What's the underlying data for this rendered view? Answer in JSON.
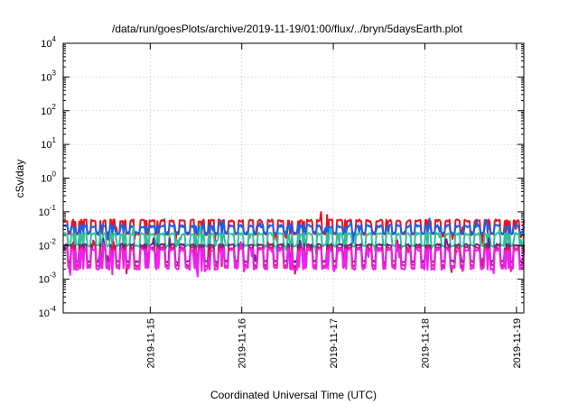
{
  "chart_data": {
    "type": "line",
    "title": "/data/run/goesPlots/archive/2019-11-19/01:00/flux/../bryn/5daysEarth.plot",
    "xlabel": "Coordinated Universal Time (UTC)",
    "ylabel": "cSv/day",
    "yscale": "log",
    "ylim": [
      0.0001,
      10000
    ],
    "xlim_days": [
      14.05,
      19.08
    ],
    "y_ticks": [
      {
        "value": 0.0001,
        "base": "10",
        "exp": "-4"
      },
      {
        "value": 0.001,
        "base": "10",
        "exp": "-3"
      },
      {
        "value": 0.01,
        "base": "10",
        "exp": "-2"
      },
      {
        "value": 0.1,
        "base": "10",
        "exp": "-1"
      },
      {
        "value": 1,
        "base": "10",
        "exp": "0"
      },
      {
        "value": 10,
        "base": "10",
        "exp": "1"
      },
      {
        "value": 100,
        "base": "10",
        "exp": "2"
      },
      {
        "value": 1000,
        "base": "10",
        "exp": "3"
      },
      {
        "value": 10000,
        "base": "10",
        "exp": "4"
      }
    ],
    "x_ticks": [
      {
        "day": 15,
        "label": "2019-11-15"
      },
      {
        "day": 16,
        "label": "2019-11-16"
      },
      {
        "day": 17,
        "label": "2019-11-17"
      },
      {
        "day": 18,
        "label": "2019-11-18"
      },
      {
        "day": 19,
        "label": "2019-11-19"
      }
    ],
    "grid": true,
    "series": [
      {
        "color": "#e8141e",
        "base": 0.055,
        "dip": 0.6,
        "noise": 0.08
      },
      {
        "color": "#1f5fe0",
        "base": 0.038,
        "dip": 0.38,
        "noise": 0.1
      },
      {
        "color": "#2fc09a",
        "base": 0.022,
        "dip": 0.55,
        "noise": 0.08
      },
      {
        "color": "#6a2a84",
        "base": 0.0105,
        "dip": 0.68,
        "noise": 0.07
      },
      {
        "color": "#d81c4e",
        "base": 0.0085,
        "dip": 0.7,
        "noise": 0.07
      },
      {
        "color": "#f020f0",
        "base": 0.0075,
        "dip": 0.72,
        "noise": 0.1
      }
    ]
  }
}
